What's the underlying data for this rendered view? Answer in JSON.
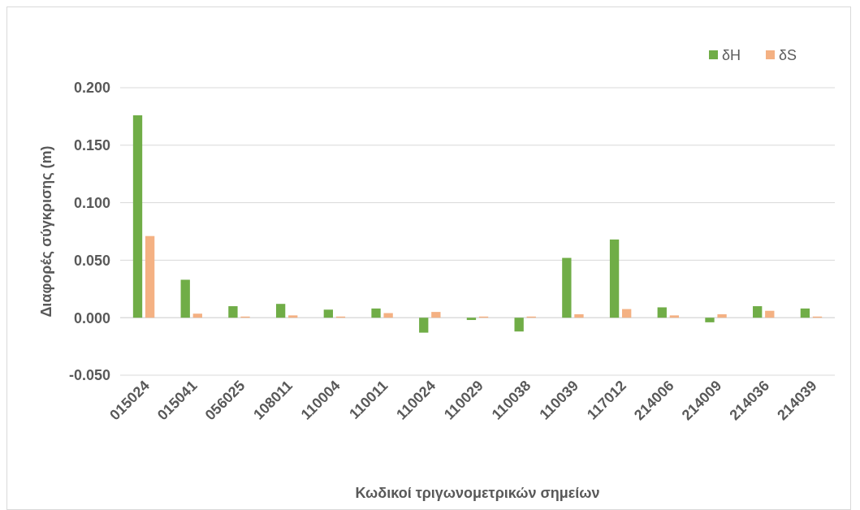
{
  "chart_data": {
    "type": "bar",
    "xlabel": "Κωδικοί τριγωνομετρικών σημείων",
    "ylabel": "Διαφορές σύγκρισης (m)",
    "categories": [
      "015024",
      "015041",
      "056025",
      "108011",
      "110004",
      "110011",
      "110024",
      "110029",
      "110038",
      "110039",
      "117012",
      "214006",
      "214009",
      "214036",
      "214039"
    ],
    "series": [
      {
        "name": "δH",
        "color": "#70ad47",
        "values": [
          0.176,
          0.033,
          0.01,
          0.012,
          0.007,
          0.008,
          -0.013,
          -0.002,
          -0.012,
          0.052,
          0.068,
          0.009,
          -0.004,
          0.01,
          0.008
        ]
      },
      {
        "name": "δS",
        "color": "#f4b183",
        "values": [
          0.071,
          0.0035,
          0.001,
          0.002,
          0.001,
          0.004,
          0.005,
          0.001,
          0.001,
          0.003,
          0.0075,
          0.002,
          0.003,
          0.006,
          0.001
        ]
      }
    ],
    "ylim": [
      -0.05,
      0.2
    ],
    "yticks": [
      {
        "value": -0.05,
        "label": "-0.050"
      },
      {
        "value": 0,
        "label": "0.000"
      },
      {
        "value": 0.05,
        "label": "0.050"
      },
      {
        "value": 0.1,
        "label": "0.100"
      },
      {
        "value": 0.15,
        "label": "0.150"
      },
      {
        "value": 0.2,
        "label": "0.200"
      }
    ],
    "grid": "y",
    "legend": "top right"
  }
}
